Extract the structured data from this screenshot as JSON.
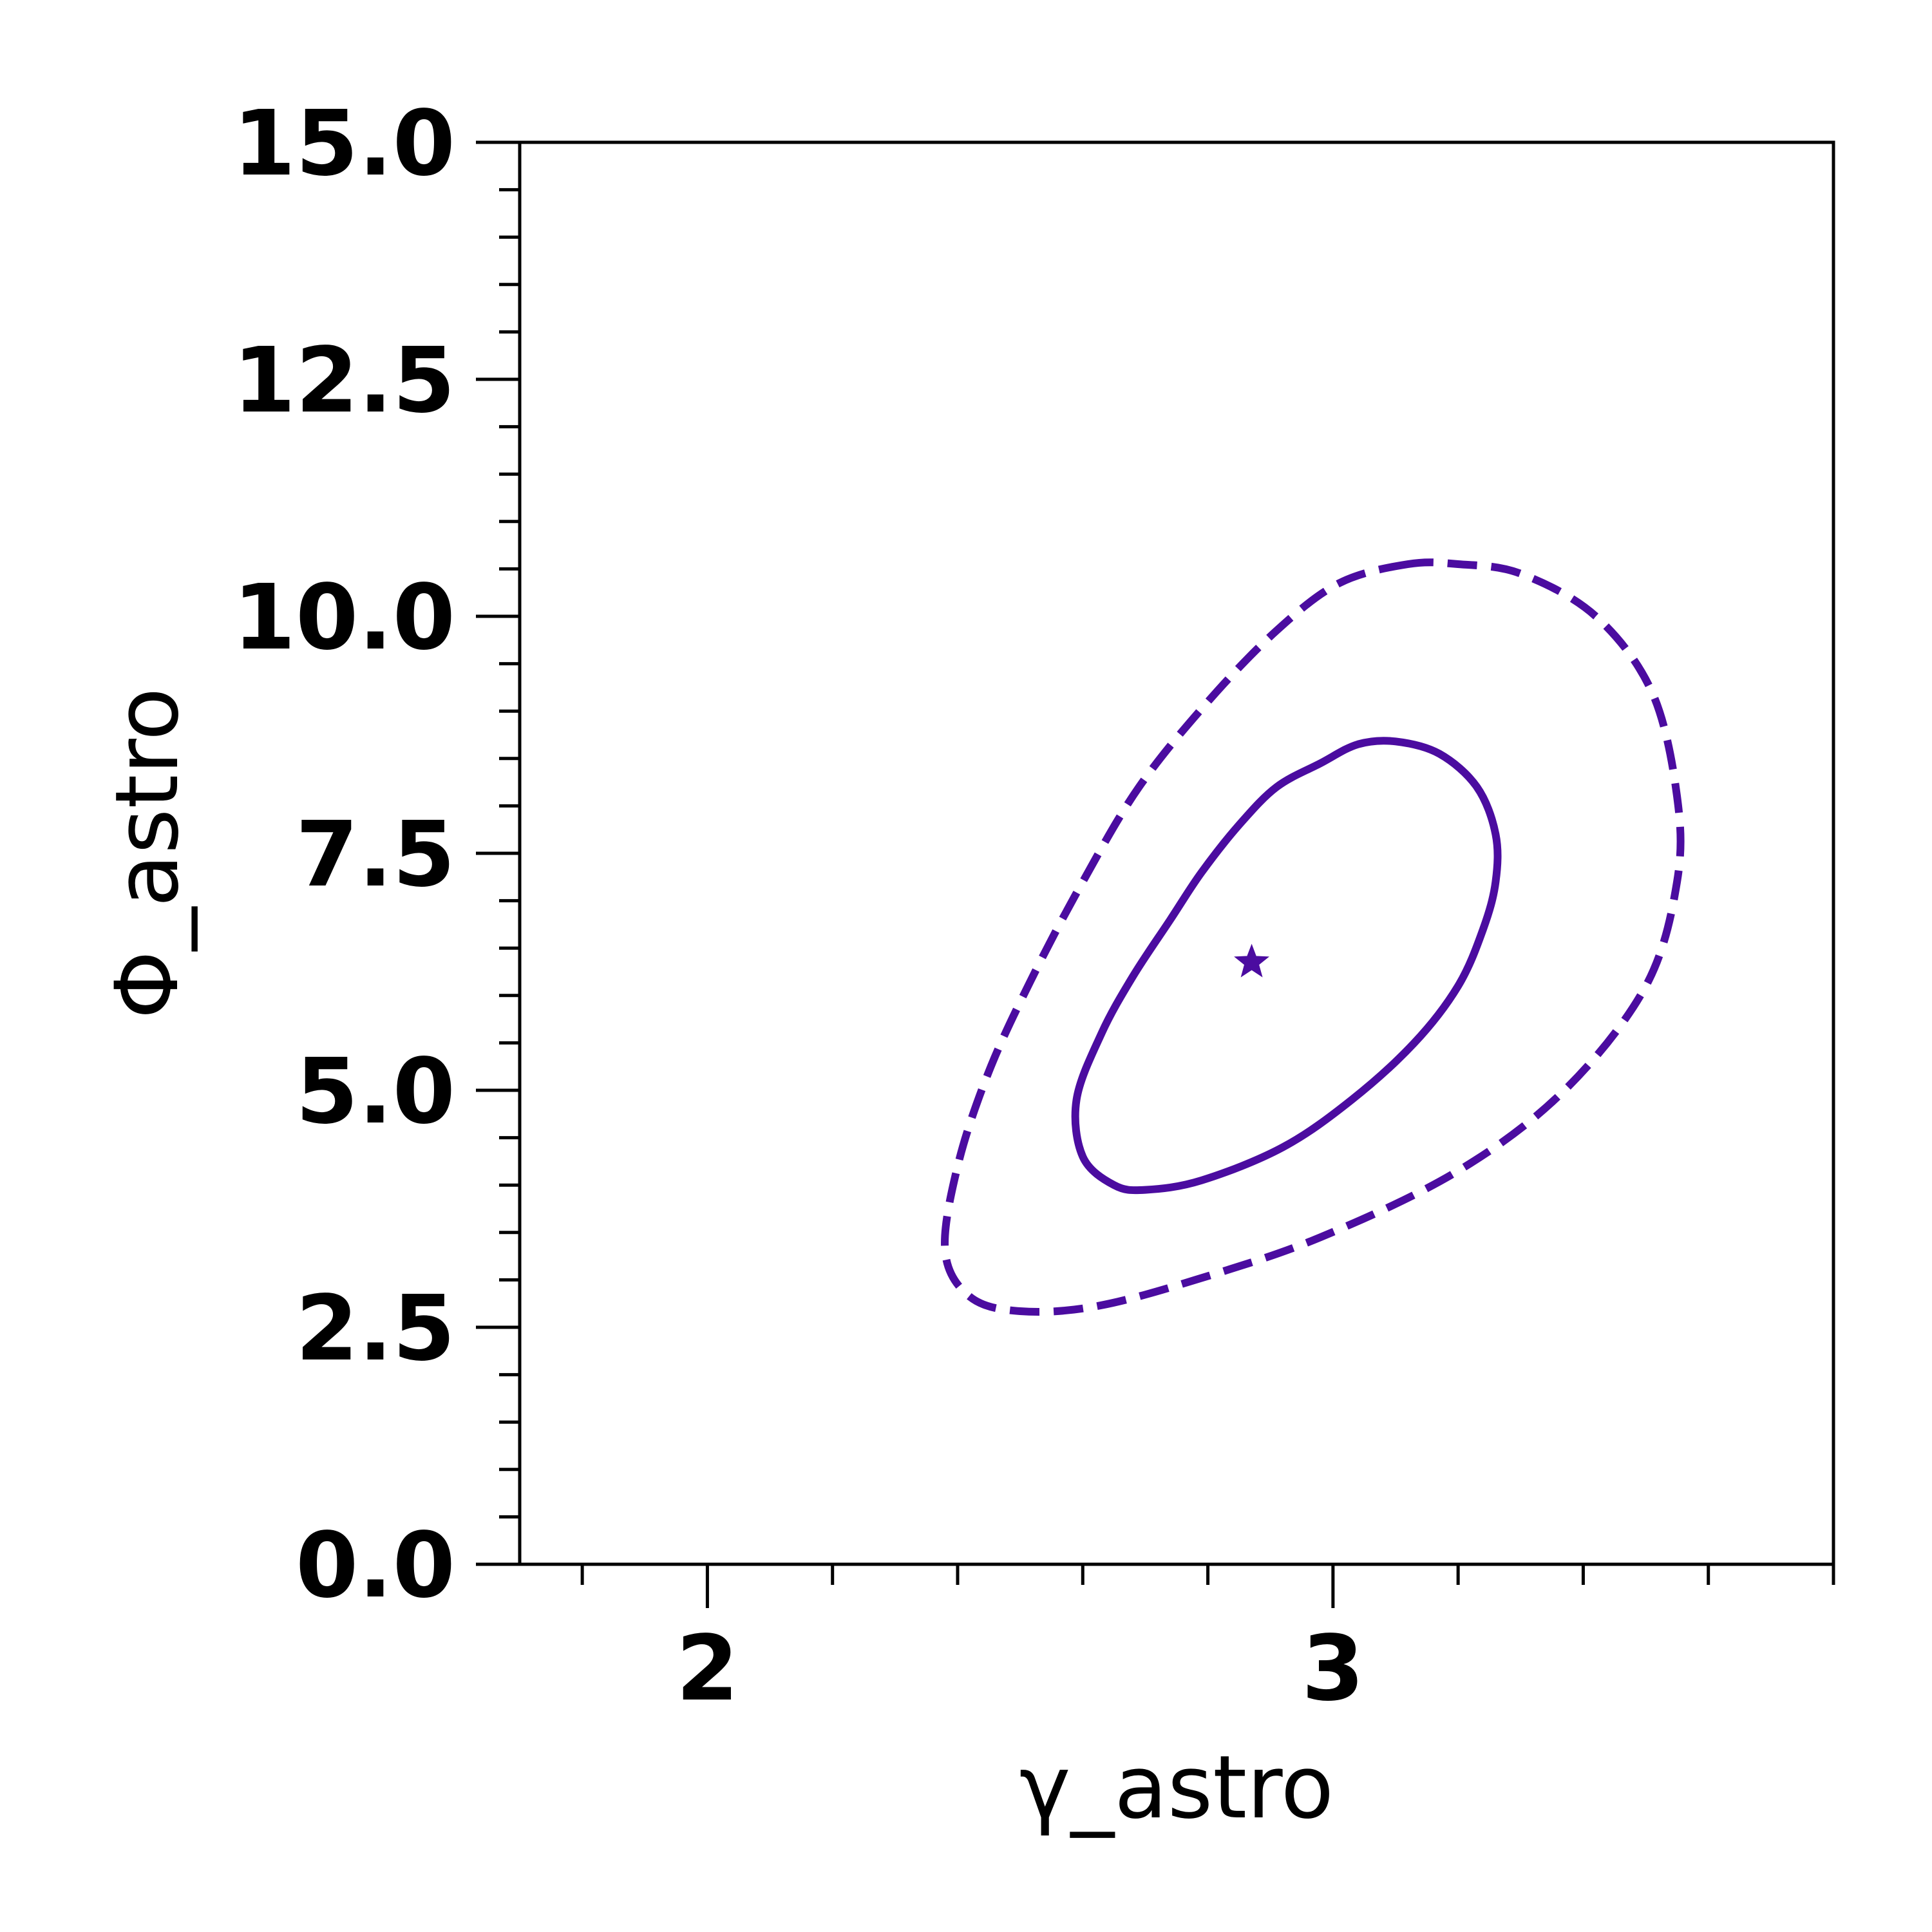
{
  "chart_data": {
    "type": "contour",
    "xlabel": "γ_astro",
    "ylabel": "Φ_astro",
    "xlim": [
      1.7,
      3.8
    ],
    "ylim": [
      0,
      15
    ],
    "x_major_ticks": [
      2,
      3
    ],
    "x_major_tick_labels": [
      "2",
      "3"
    ],
    "x_minor_ticks": [
      1.8,
      2.2,
      2.4,
      2.6,
      2.8,
      3.2,
      3.4,
      3.6,
      3.8
    ],
    "y_major_ticks": [
      0,
      2.5,
      5,
      7.5,
      10,
      12.5,
      15
    ],
    "y_major_tick_labels": [
      "0.0",
      "2.5",
      "5.0",
      "7.5",
      "10.0",
      "12.5",
      "15.0"
    ],
    "y_minor_ticks": [
      0.5,
      1,
      1.5,
      2,
      3,
      3.5,
      4,
      4.5,
      5.5,
      6,
      6.5,
      7,
      8,
      8.5,
      9,
      9.5,
      10.5,
      11,
      11.5,
      12,
      13,
      13.5,
      14,
      14.5
    ],
    "grid": false,
    "color": "#4b0ca0",
    "best_fit": {
      "x": 2.87,
      "y": 6.35,
      "marker": "star"
    },
    "contours": [
      {
        "style": "solid",
        "points": [
          [
            3.04,
            8.65
          ],
          [
            2.98,
            8.45
          ],
          [
            2.91,
            8.2
          ],
          [
            2.85,
            7.8
          ],
          [
            2.79,
            7.3
          ],
          [
            2.74,
            6.8
          ],
          [
            2.68,
            6.2
          ],
          [
            2.63,
            5.6
          ],
          [
            2.59,
            4.9
          ],
          [
            2.6,
            4.3
          ],
          [
            2.65,
            4.0
          ],
          [
            2.7,
            3.95
          ],
          [
            2.79,
            4.05
          ],
          [
            2.92,
            4.4
          ],
          [
            3.03,
            4.9
          ],
          [
            3.13,
            5.5
          ],
          [
            3.2,
            6.1
          ],
          [
            3.24,
            6.7
          ],
          [
            3.26,
            7.2
          ],
          [
            3.26,
            7.7
          ],
          [
            3.23,
            8.2
          ],
          [
            3.17,
            8.55
          ],
          [
            3.1,
            8.68
          ]
        ]
      },
      {
        "style": "dashed",
        "points": [
          [
            3.12,
            10.55
          ],
          [
            3.01,
            10.35
          ],
          [
            2.91,
            9.85
          ],
          [
            2.8,
            9.1
          ],
          [
            2.69,
            8.2
          ],
          [
            2.6,
            7.2
          ],
          [
            2.52,
            6.2
          ],
          [
            2.45,
            5.2
          ],
          [
            2.4,
            4.2
          ],
          [
            2.38,
            3.3
          ],
          [
            2.42,
            2.82
          ],
          [
            2.5,
            2.67
          ],
          [
            2.62,
            2.72
          ],
          [
            2.78,
            3.0
          ],
          [
            2.98,
            3.45
          ],
          [
            3.2,
            4.15
          ],
          [
            3.37,
            5.0
          ],
          [
            3.5,
            6.1
          ],
          [
            3.55,
            7.2
          ],
          [
            3.55,
            8.1
          ],
          [
            3.51,
            9.2
          ],
          [
            3.42,
            10.0
          ],
          [
            3.3,
            10.45
          ],
          [
            3.2,
            10.55
          ]
        ]
      }
    ]
  }
}
